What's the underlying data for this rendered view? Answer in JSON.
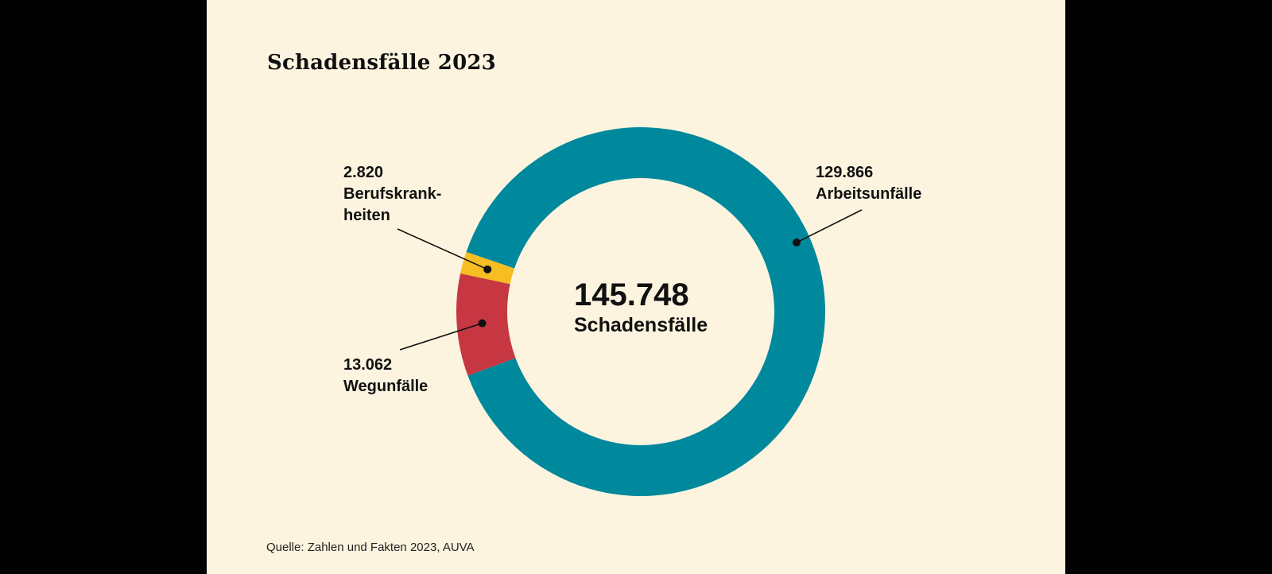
{
  "chart_data": {
    "type": "pie",
    "title": "Schadensfälle 2023",
    "categories": [
      "Arbeitsunfälle",
      "Wegunfälle",
      "Berufskrankheiten"
    ],
    "values": [
      129866,
      13062,
      2820
    ],
    "value_labels": [
      "129.866",
      "13.062",
      "2.820"
    ],
    "label_lines": [
      [
        "Arbeitsunfälle"
      ],
      [
        "Wegunfälle"
      ],
      [
        "Berufskrank-",
        "heiten"
      ]
    ],
    "colors": [
      "#00889c",
      "#c63742",
      "#f6be23"
    ],
    "total_value": "145.748",
    "total_caption": "Schadensfälle",
    "source": "Quelle: Zahlen und Fakten 2023, AUVA"
  }
}
